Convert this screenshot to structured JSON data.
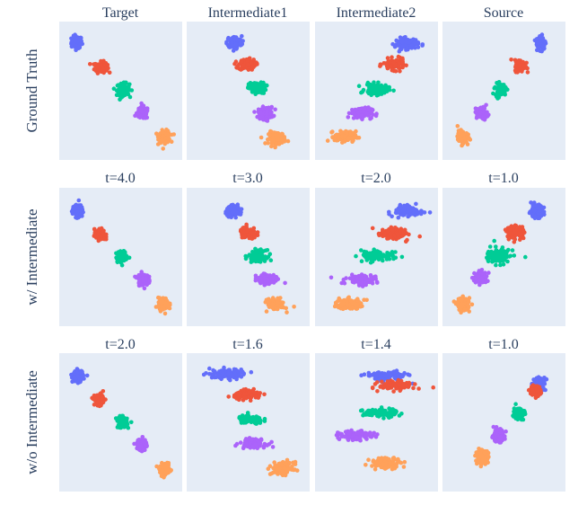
{
  "chart_data": {
    "type": "scatter",
    "grid_rows": [
      "Ground Truth",
      "w/ Intermediate",
      "w/o Intermediate"
    ],
    "panel_titles": [
      [
        "Target",
        "Intermediate1",
        "Intermediate2",
        "Source"
      ],
      [
        "t=4.0",
        "t=3.0",
        "t=2.0",
        "t=1.0"
      ],
      [
        "t=2.0",
        "t=1.6",
        "t=1.4",
        "t=1.0"
      ]
    ],
    "series_colors": [
      "#636efa",
      "#ef553b",
      "#00cc96",
      "#ab63fa",
      "#ffa15a"
    ],
    "panel_background": "#e5ecf6",
    "axes_visible": false,
    "xlim": [
      0,
      1
    ],
    "ylim": [
      0,
      1
    ],
    "clusters": [
      [
        [
          [
            0.12,
            0.87,
            0.05,
            0.05,
            0
          ],
          [
            0.33,
            0.68,
            0.06,
            0.045,
            0
          ],
          [
            0.52,
            0.51,
            0.06,
            0.05,
            0
          ],
          [
            0.69,
            0.33,
            0.055,
            0.05,
            0
          ],
          [
            0.88,
            0.15,
            0.055,
            0.05,
            0
          ]
        ],
        [
          [
            0.38,
            0.87,
            0.07,
            0.05,
            0
          ],
          [
            0.49,
            0.7,
            0.08,
            0.045,
            0
          ],
          [
            0.58,
            0.52,
            0.08,
            0.045,
            0
          ],
          [
            0.65,
            0.33,
            0.07,
            0.05,
            0
          ],
          [
            0.75,
            0.14,
            0.08,
            0.05,
            0
          ]
        ],
        [
          [
            0.76,
            0.86,
            0.11,
            0.045,
            0
          ],
          [
            0.65,
            0.7,
            0.1,
            0.045,
            0
          ],
          [
            0.5,
            0.51,
            0.11,
            0.045,
            0
          ],
          [
            0.37,
            0.33,
            0.1,
            0.045,
            0
          ],
          [
            0.23,
            0.15,
            0.1,
            0.045,
            0
          ]
        ],
        [
          [
            0.82,
            0.87,
            0.045,
            0.06,
            0
          ],
          [
            0.64,
            0.69,
            0.05,
            0.05,
            0
          ],
          [
            0.47,
            0.51,
            0.05,
            0.05,
            0
          ],
          [
            0.31,
            0.33,
            0.05,
            0.05,
            0
          ],
          [
            0.14,
            0.15,
            0.045,
            0.05,
            0
          ]
        ]
      ],
      [
        [
          [
            0.13,
            0.85,
            0.05,
            0.05,
            0
          ],
          [
            0.32,
            0.67,
            0.05,
            0.045,
            0
          ],
          [
            0.51,
            0.5,
            0.055,
            0.045,
            0
          ],
          [
            0.69,
            0.33,
            0.05,
            0.05,
            0
          ],
          [
            0.87,
            0.14,
            0.05,
            0.05,
            0
          ]
        ],
        [
          [
            0.38,
            0.85,
            0.08,
            0.04,
            0
          ],
          [
            0.5,
            0.68,
            0.08,
            0.045,
            0
          ],
          [
            0.58,
            0.51,
            0.08,
            0.045,
            0
          ],
          [
            0.65,
            0.33,
            0.08,
            0.04,
            0.35
          ],
          [
            0.74,
            0.14,
            0.08,
            0.045,
            0
          ]
        ],
        [
          [
            0.76,
            0.85,
            0.12,
            0.04,
            0.5
          ],
          [
            0.64,
            0.68,
            0.12,
            0.04,
            0.55
          ],
          [
            0.5,
            0.51,
            0.12,
            0.045,
            0.8
          ],
          [
            0.37,
            0.33,
            0.12,
            0.04,
            0.6
          ],
          [
            0.26,
            0.14,
            0.12,
            0.04,
            0.4
          ]
        ],
        [
          [
            0.78,
            0.85,
            0.07,
            0.05,
            0
          ],
          [
            0.6,
            0.69,
            0.08,
            0.05,
            0
          ],
          [
            0.45,
            0.51,
            0.1,
            0.06,
            0.6
          ],
          [
            0.3,
            0.34,
            0.06,
            0.05,
            0
          ],
          [
            0.15,
            0.14,
            0.06,
            0.05,
            0
          ]
        ]
      ],
      [
        [
          [
            0.13,
            0.85,
            0.05,
            0.045,
            0
          ],
          [
            0.32,
            0.67,
            0.05,
            0.045,
            0
          ],
          [
            0.51,
            0.5,
            0.05,
            0.045,
            0
          ],
          [
            0.68,
            0.33,
            0.045,
            0.05,
            0
          ],
          [
            0.88,
            0.14,
            0.05,
            0.045,
            0
          ]
        ],
        [
          [
            0.33,
            0.87,
            0.18,
            0.04,
            0.1
          ],
          [
            0.5,
            0.71,
            0.13,
            0.035,
            0
          ],
          [
            0.52,
            0.52,
            0.12,
            0.035,
            0
          ],
          [
            0.54,
            0.34,
            0.12,
            0.035,
            0
          ],
          [
            0.8,
            0.15,
            0.1,
            0.05,
            0
          ]
        ],
        [
          [
            0.58,
            0.85,
            0.2,
            0.04,
            0
          ],
          [
            0.68,
            0.78,
            0.17,
            0.035,
            0
          ],
          [
            0.53,
            0.57,
            0.16,
            0.035,
            0
          ],
          [
            0.32,
            0.4,
            0.16,
            0.035,
            0
          ],
          [
            0.58,
            0.19,
            0.15,
            0.045,
            0
          ]
        ],
        [
          [
            0.8,
            0.79,
            0.06,
            0.06,
            0
          ],
          [
            0.77,
            0.74,
            0.05,
            0.04,
            0
          ],
          [
            0.63,
            0.57,
            0.05,
            0.05,
            0
          ],
          [
            0.45,
            0.4,
            0.06,
            0.05,
            0
          ],
          [
            0.31,
            0.24,
            0.06,
            0.05,
            0
          ]
        ]
      ]
    ]
  }
}
